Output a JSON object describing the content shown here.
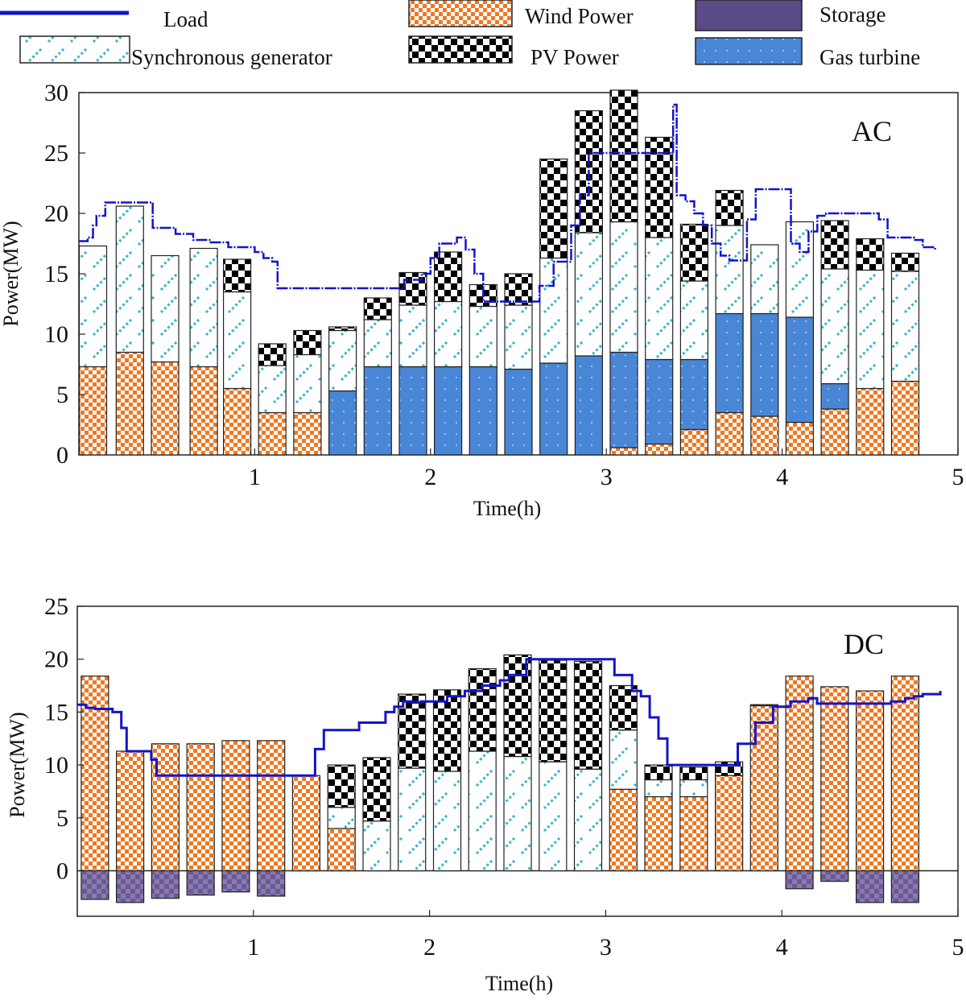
{
  "legend": {
    "items": [
      {
        "name": "Load",
        "label": "Load"
      },
      {
        "name": "Synchronous generator",
        "label": "Synchronous generator"
      },
      {
        "name": "Wind Power",
        "label": "Wind Power"
      },
      {
        "name": "PV Power",
        "label": "PV Power"
      },
      {
        "name": "Storage",
        "label": "Storage"
      },
      {
        "name": "Gas turbine",
        "label": "Gas turbine"
      }
    ]
  },
  "colors": {
    "load": "#1414c8",
    "wind": "#f07820",
    "sync": "#3cb4d2",
    "pv": "#000000",
    "storage": "#6a5a92",
    "gas": "#4a86d6",
    "axis": "#222222"
  },
  "chart_data": [
    {
      "type": "bar",
      "panel": "AC",
      "title": "AC",
      "xlabel": "Time(h)",
      "ylabel": "Power(MW)",
      "xlim": [
        0,
        5
      ],
      "ylim": [
        0,
        30
      ],
      "xticks": [
        "1",
        "2",
        "3",
        "4",
        "5"
      ],
      "yticks": [
        "0",
        "5",
        "10",
        "15",
        "20",
        "25",
        "30"
      ],
      "x": [
        0.08,
        0.29,
        0.49,
        0.71,
        0.9,
        1.1,
        1.3,
        1.5,
        1.7,
        1.9,
        2.1,
        2.3,
        2.5,
        2.7,
        2.9,
        3.1,
        3.3,
        3.5,
        3.7,
        3.9,
        4.1,
        4.3,
        4.5,
        4.7
      ],
      "series": [
        {
          "name": "Wind Power",
          "values": [
            7.3,
            8.5,
            7.7,
            7.3,
            5.5,
            3.5,
            3.5,
            0,
            0,
            0,
            0,
            0,
            0,
            0,
            0,
            0.6,
            0.9,
            2.1,
            3.5,
            3.2,
            2.7,
            3.8,
            5.5,
            6.1
          ]
        },
        {
          "name": "Gas turbine",
          "values": [
            0,
            0,
            0,
            0,
            0,
            0,
            0,
            5.3,
            7.3,
            7.3,
            7.3,
            7.3,
            7.1,
            7.6,
            8.2,
            7.9,
            7.0,
            5.8,
            8.2,
            8.5,
            8.7,
            2.1,
            0,
            0
          ]
        },
        {
          "name": "Synchronous generator",
          "values": [
            10.0,
            12.1,
            8.8,
            9.8,
            8.0,
            3.9,
            4.8,
            5.0,
            3.9,
            5.1,
            5.4,
            5.0,
            5.3,
            8.7,
            10.2,
            10.8,
            10.1,
            6.5,
            7.3,
            5.7,
            7.9,
            9.5,
            9.8,
            9.1
          ]
        },
        {
          "name": "PV Power",
          "values": [
            0,
            0,
            0,
            0,
            2.7,
            1.8,
            2.0,
            0.3,
            1.8,
            2.7,
            4.1,
            1.8,
            2.6,
            8.2,
            10.1,
            10.9,
            8.3,
            4.7,
            2.9,
            0,
            0,
            4.0,
            2.6,
            1.5
          ]
        }
      ],
      "load": {
        "name": "Load",
        "x": [
          0,
          0.05,
          0.08,
          0.1,
          0.15,
          0.4,
          0.42,
          0.55,
          0.65,
          0.75,
          0.85,
          1.0,
          1.05,
          1.1,
          1.13,
          1.8,
          1.85,
          1.95,
          2.0,
          2.05,
          2.15,
          2.2,
          2.25,
          2.3,
          2.6,
          2.62,
          2.7,
          2.8,
          2.85,
          2.9,
          3.38,
          3.4,
          3.45,
          3.5,
          3.55,
          3.6,
          3.65,
          3.7,
          3.8,
          3.85,
          3.9,
          4.05,
          4.1,
          4.15,
          4.2,
          4.25,
          4.5,
          4.55,
          4.6,
          4.75,
          4.8,
          4.87
        ],
        "values": [
          17.7,
          18.0,
          19.0,
          19.8,
          20.9,
          20.9,
          18.8,
          18.3,
          17.8,
          17.6,
          17.2,
          16.8,
          16.3,
          16.0,
          13.8,
          13.8,
          14.5,
          15.0,
          16.3,
          17.5,
          18.0,
          17.0,
          15.0,
          12.7,
          12.7,
          14.0,
          16.0,
          19.0,
          21.5,
          25.0,
          29.0,
          21.5,
          21.0,
          20.0,
          19.0,
          17.5,
          16.5,
          16.1,
          19.5,
          22.0,
          22.0,
          17.5,
          16.8,
          18.5,
          19.8,
          20.0,
          20.0,
          19.5,
          18.0,
          17.8,
          17.2,
          17.0
        ]
      }
    },
    {
      "type": "bar",
      "panel": "DC",
      "title": "DC",
      "xlabel": "Time(h)",
      "ylabel": "Power(MW)",
      "xlim": [
        0,
        5
      ],
      "ylim": [
        -4.3,
        25
      ],
      "xticks": [
        "1",
        "2",
        "3",
        "4",
        "5"
      ],
      "yticks": [
        "0",
        "5",
        "10",
        "15",
        "20",
        "25"
      ],
      "x": [
        0.1,
        0.3,
        0.5,
        0.7,
        0.9,
        1.1,
        1.3,
        1.5,
        1.7,
        1.9,
        2.1,
        2.3,
        2.5,
        2.7,
        2.9,
        3.1,
        3.3,
        3.5,
        3.7,
        3.9,
        4.1,
        4.3,
        4.5,
        4.7
      ],
      "series": [
        {
          "name": "Wind Power",
          "values": [
            18.4,
            11.3,
            12.0,
            12.0,
            12.3,
            12.3,
            9.0,
            4.0,
            0,
            0,
            0,
            0,
            0,
            0,
            0,
            7.7,
            7.0,
            7.0,
            9.0,
            15.6,
            18.4,
            17.4,
            17.0,
            18.4
          ]
        },
        {
          "name": "Synchronous generator",
          "values": [
            0,
            0,
            0,
            0,
            0,
            0,
            0,
            2.0,
            4.7,
            9.7,
            9.4,
            11.3,
            10.8,
            10.3,
            9.6,
            5.6,
            1.6,
            1.6,
            0,
            0,
            0,
            0,
            0,
            0
          ]
        },
        {
          "name": "PV Power",
          "values": [
            0,
            0,
            0,
            0,
            0,
            0,
            0,
            4.0,
            6.0,
            7.0,
            7.7,
            7.8,
            9.6,
            9.6,
            10.2,
            4.2,
            1.4,
            1.2,
            1.3,
            0.1,
            0,
            0,
            0,
            0
          ]
        },
        {
          "name": "Storage",
          "values": [
            -2.7,
            -3.0,
            -2.6,
            -2.3,
            -2.0,
            -2.4,
            0,
            0,
            0,
            0,
            0,
            0,
            0,
            0,
            0,
            0,
            0,
            0,
            0,
            0,
            -1.7,
            -1.0,
            -3.0,
            -3.0
          ]
        }
      ],
      "load": {
        "name": "Load",
        "x": [
          0,
          0.05,
          0.1,
          0.2,
          0.25,
          0.28,
          0.33,
          0.38,
          0.42,
          0.45,
          1.32,
          1.35,
          1.4,
          1.6,
          1.75,
          1.8,
          1.85,
          1.9,
          1.95,
          2.1,
          2.2,
          2.3,
          2.4,
          2.45,
          2.55,
          3.0,
          3.05,
          3.15,
          3.2,
          3.25,
          3.3,
          3.35,
          3.7,
          3.75,
          3.85,
          3.95,
          4.05,
          4.15,
          4.2,
          4.6,
          4.62,
          4.7,
          4.75,
          4.8,
          4.9
        ],
        "values": [
          15.7,
          15.4,
          15.3,
          15.0,
          13.5,
          11.3,
          11.3,
          11.3,
          10.5,
          9.0,
          9.0,
          11.5,
          13.3,
          14.0,
          15.0,
          15.5,
          16.0,
          15.9,
          16.0,
          16.5,
          17.0,
          17.5,
          18.0,
          18.5,
          20.0,
          20.0,
          18.5,
          17.0,
          16.5,
          14.5,
          12.5,
          10.0,
          10.0,
          12.0,
          14.0,
          15.5,
          16.0,
          16.3,
          15.8,
          15.8,
          16.0,
          16.3,
          16.5,
          16.7,
          17.0
        ]
      }
    }
  ]
}
